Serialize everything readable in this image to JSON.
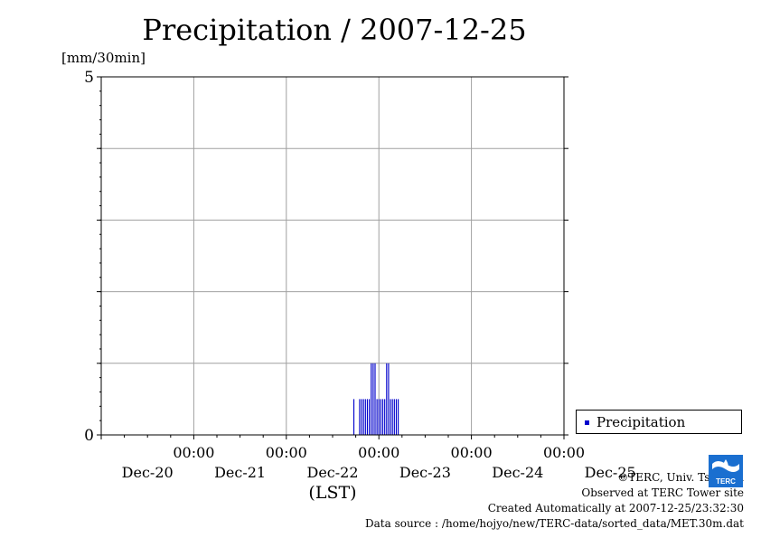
{
  "title": "Precipitation / 2007-12-25",
  "y_unit_label": "[mm/30min]",
  "x_axis_label": "(LST)",
  "legend": {
    "label": "Precipitation"
  },
  "credits": {
    "copyright": "©TERC, Univ. Tsukuba",
    "observed": "Observed at TERC Tower site",
    "created": "Created Automatically at 2007-12-25/23:32:30",
    "source": "Data source : /home/hojyo/new/TERC-data/sorted_data/MET.30m.dat"
  },
  "logo_text": "TERC",
  "colors": {
    "series": "#0000cc",
    "grid": "#a0a0a0",
    "axis": "#000000"
  },
  "chart_data": {
    "type": "bar",
    "title": "Precipitation / 2007-12-25",
    "ylabel": "[mm/30min]",
    "xlabel": "(LST)",
    "ylim": [
      0,
      5
    ],
    "y_ticks": [
      0,
      5
    ],
    "y_grid": [
      1,
      2,
      3,
      4
    ],
    "x_range_hours": [
      -96,
      24
    ],
    "x_ticks": [
      {
        "hour": -72,
        "time": "00:00",
        "date": "Dec-21"
      },
      {
        "hour": -48,
        "time": "00:00",
        "date": "Dec-22"
      },
      {
        "hour": -24,
        "time": "00:00",
        "date": "Dec-23"
      },
      {
        "hour": 0,
        "time": "00:00",
        "date": "Dec-24"
      },
      {
        "hour": 24,
        "time": "00:00",
        "date": "Dec-25"
      }
    ],
    "date_labels": [
      "Dec-20",
      "Dec-21",
      "Dec-22",
      "Dec-23",
      "Dec-24",
      "Dec-25"
    ],
    "grid": true,
    "legend_position": "right",
    "series": [
      {
        "name": "Precipitation",
        "x_label": "time (hours relative to 2007-12-24 00:00)",
        "x": [
          -30.5,
          -29,
          -28.5,
          -28,
          -27.5,
          -27,
          -26.5,
          -26,
          -25.5,
          -25,
          -24.5,
          -24,
          -23.5,
          -23,
          -22.5,
          -22,
          -21.5,
          -21,
          -20.5,
          -20,
          -19.5,
          -19
        ],
        "values": [
          0.5,
          0.5,
          0.5,
          0.5,
          0.5,
          0.5,
          0.5,
          1.0,
          1.0,
          1.0,
          0.5,
          0.5,
          0.5,
          0.5,
          0.5,
          1.0,
          1.0,
          0.5,
          0.5,
          0.5,
          0.5,
          0.5
        ]
      }
    ]
  }
}
